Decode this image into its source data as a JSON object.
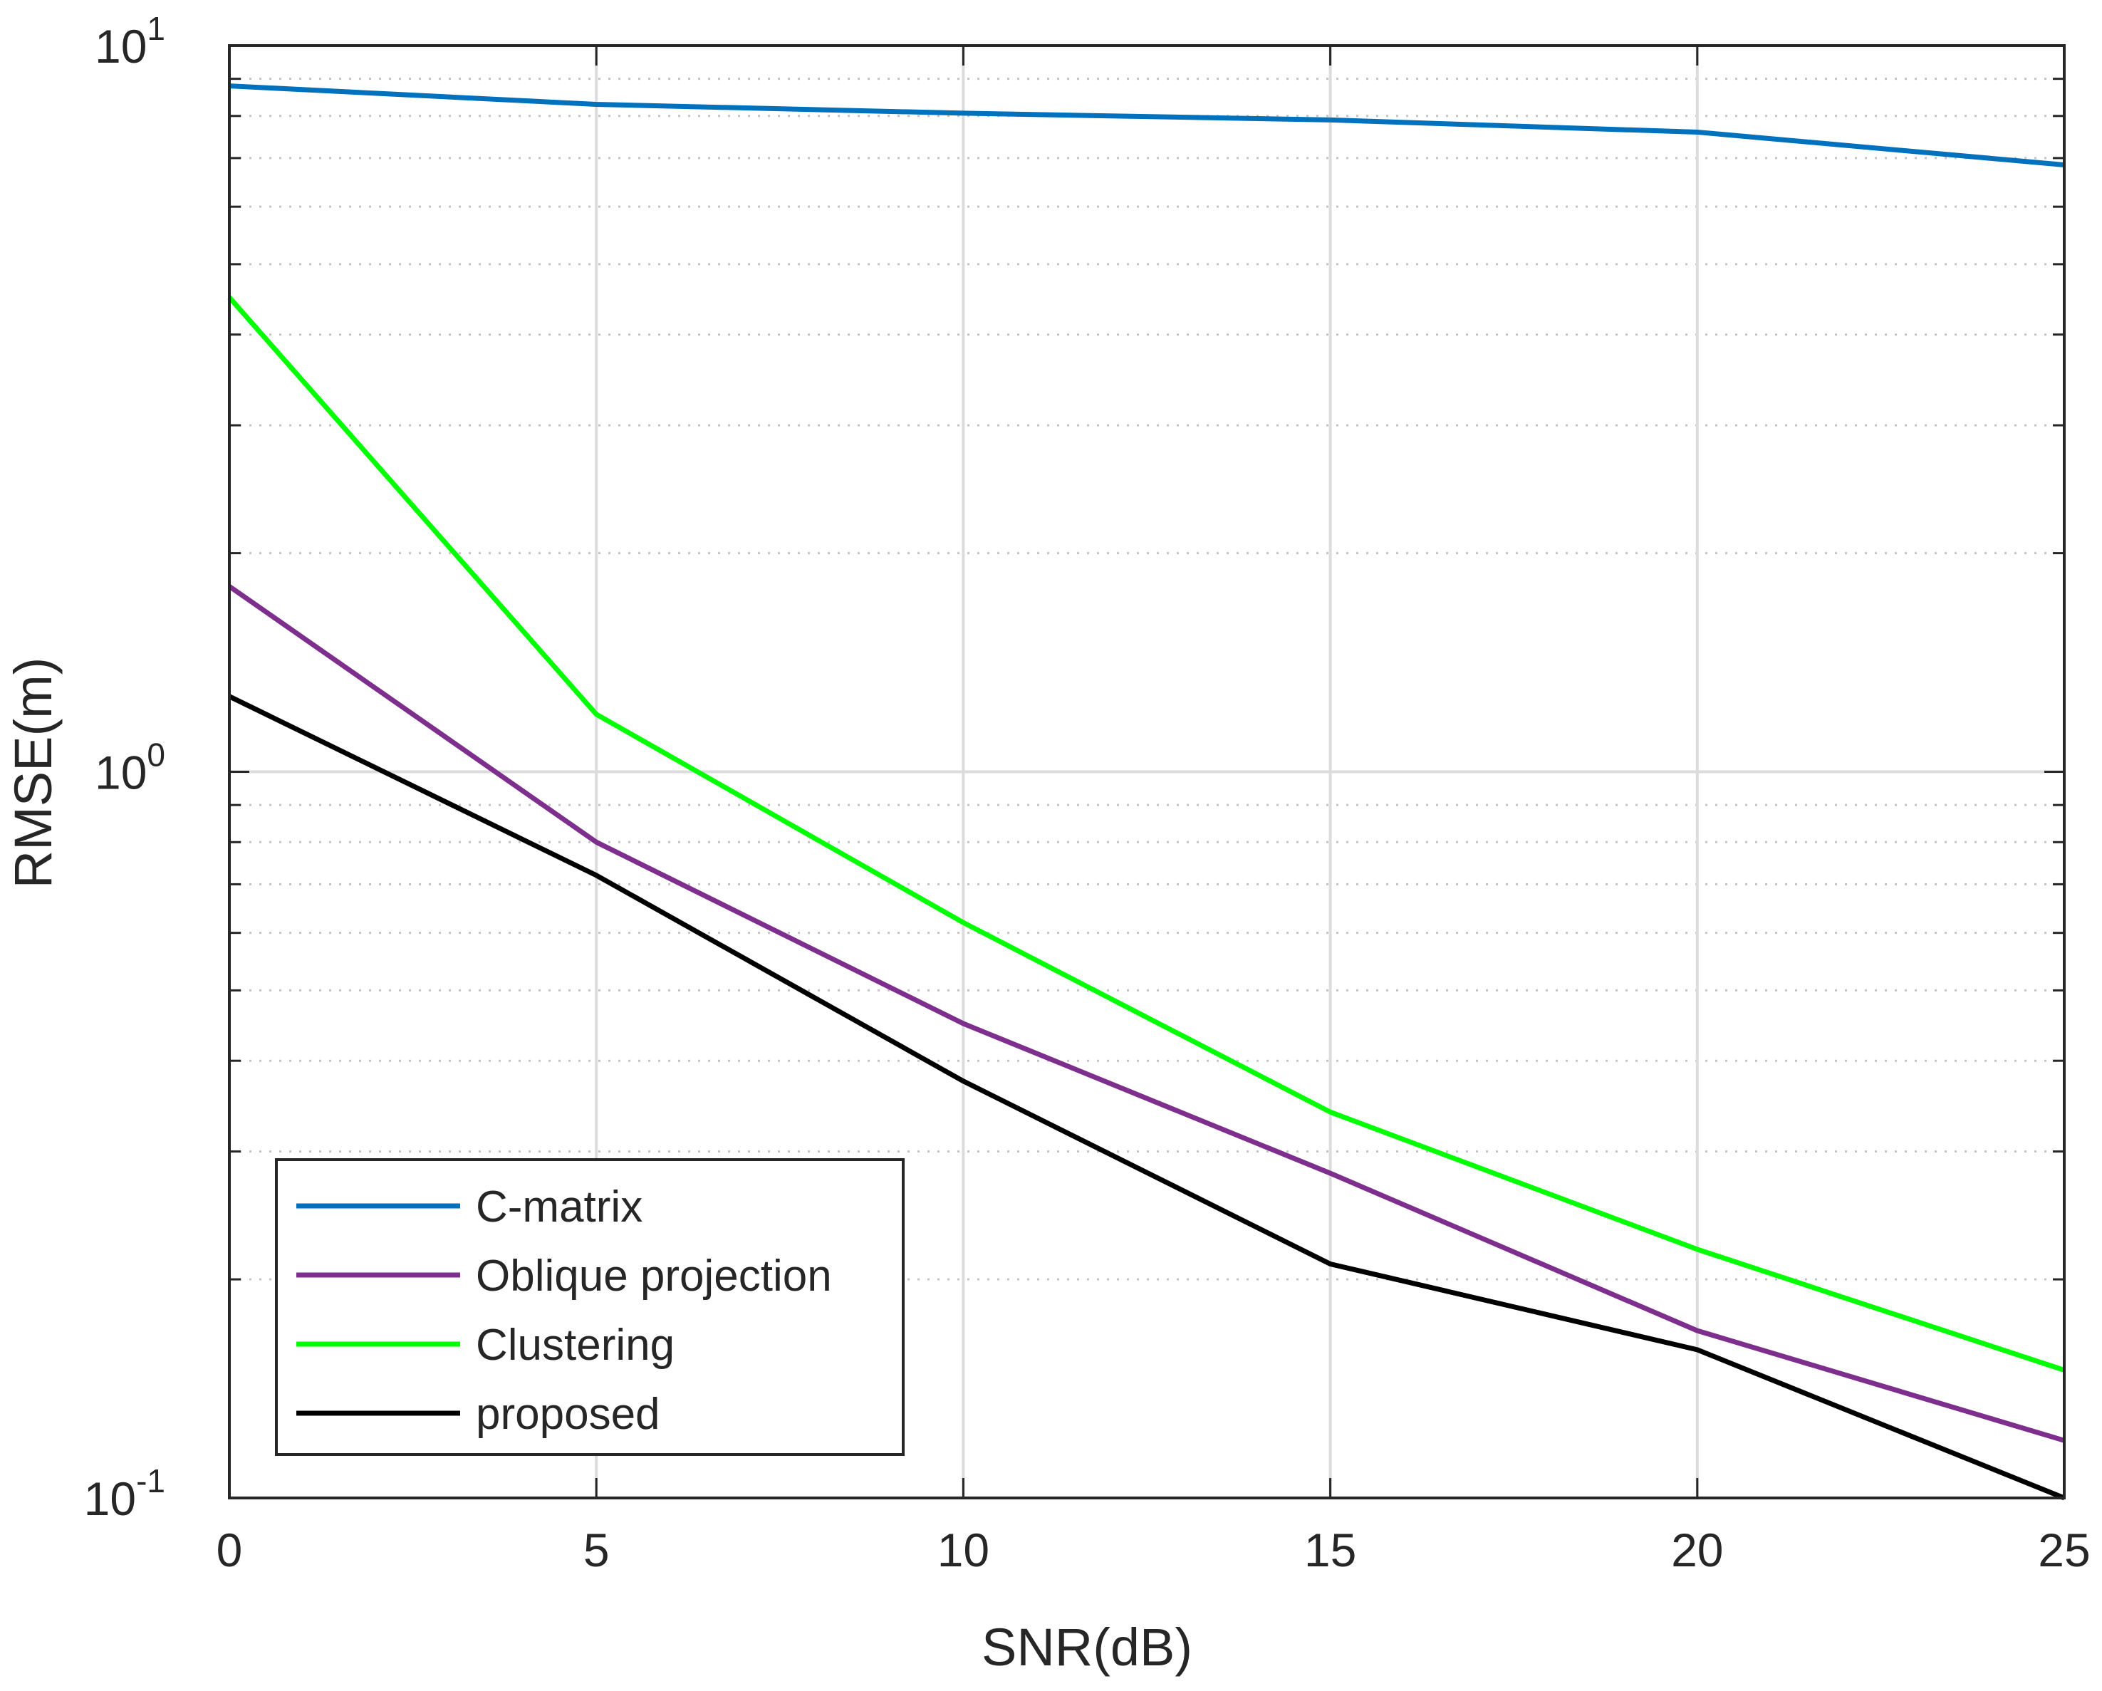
{
  "chart_data": {
    "type": "line",
    "title": "",
    "xlabel": "SNR(dB)",
    "ylabel": "RMSE(m)",
    "x": [
      0,
      5,
      10,
      15,
      20,
      25
    ],
    "xlim": [
      0,
      25
    ],
    "ylim": [
      0.1,
      10
    ],
    "yscale": "log",
    "x_tick_labels": [
      "0",
      "5",
      "10",
      "15",
      "20",
      "25"
    ],
    "y_tick_labels": [
      {
        "value": 0.1,
        "base": "10",
        "exp": "-1"
      },
      {
        "value": 1,
        "base": "10",
        "exp": "0"
      },
      {
        "value": 10,
        "base": "10",
        "exp": "1"
      }
    ],
    "grid": true,
    "legend_position": "bottom-left",
    "series": [
      {
        "name": "C-matrix",
        "color": "#0072BD",
        "values": [
          8.8,
          8.3,
          8.07,
          7.9,
          7.6,
          6.85
        ]
      },
      {
        "name": "Oblique projection",
        "color": "#7E2F8E",
        "values": [
          1.8,
          0.8,
          0.45,
          0.28,
          0.17,
          0.12
        ]
      },
      {
        "name": "Clustering",
        "color": "#00FF00",
        "values": [
          4.5,
          1.2,
          0.62,
          0.34,
          0.22,
          0.15
        ]
      },
      {
        "name": "proposed",
        "color": "#000000",
        "values": [
          1.27,
          0.72,
          0.375,
          0.21,
          0.16,
          0.1
        ]
      }
    ]
  }
}
